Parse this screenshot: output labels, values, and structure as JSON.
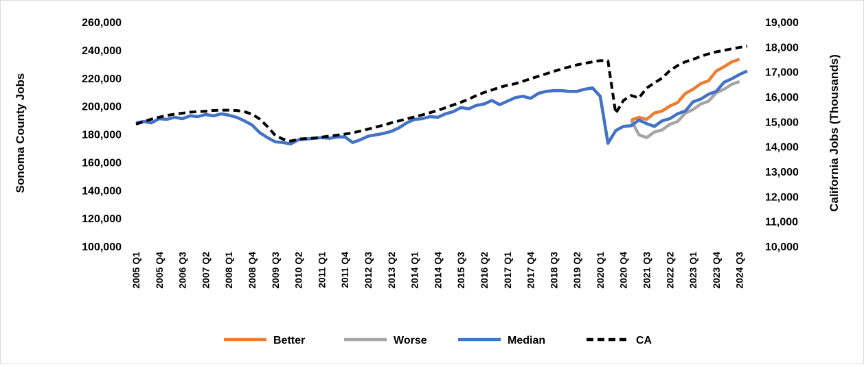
{
  "chart_data": {
    "type": "line",
    "title": "",
    "ylabel": "Sonoma County Jobs",
    "y2label": "California Jobs (Thousands)",
    "ylim": [
      100000,
      260000
    ],
    "y2lim": [
      10000,
      19000
    ],
    "yticks": [
      "100,000",
      "120,000",
      "140,000",
      "160,000",
      "180,000",
      "200,000",
      "220,000",
      "240,000",
      "260,000"
    ],
    "y2ticks": [
      "10,000",
      "11,000",
      "12,000",
      "13,000",
      "14,000",
      "15,000",
      "16,000",
      "17,000",
      "18,000",
      "19,000"
    ],
    "xticks": [
      "2005 Q1",
      "2005 Q4",
      "2006 Q3",
      "2007 Q2",
      "2008 Q1",
      "2008 Q4",
      "2009 Q3",
      "2010 Q2",
      "2011 Q1",
      "2011 Q4",
      "2012 Q3",
      "2013 Q2",
      "2014 Q1",
      "2014 Q4",
      "2015 Q3",
      "2016 Q2",
      "2017 Q1",
      "2017 Q4",
      "2018 Q3",
      "2019 Q2",
      "2020 Q1",
      "2020 Q4",
      "2021 Q3",
      "2022 Q2",
      "2023 Q1",
      "2023 Q4",
      "2024 Q3"
    ],
    "legend": {
      "position": "bottom"
    },
    "grid": false,
    "series": [
      {
        "name": "Better",
        "color": "#ED7D31",
        "axis": "left",
        "start_quarter": "2021 Q1",
        "values": [
          190000,
          192000,
          190500,
          195000,
          196500,
          200000,
          202500,
          209000,
          212000,
          216000,
          218000,
          225000,
          228000,
          231500,
          233500
        ]
      },
      {
        "name": "Worse",
        "color": "#A5A5A5",
        "axis": "left",
        "start_quarter": "2021 Q1",
        "values": [
          190000,
          179500,
          177500,
          181500,
          183000,
          187000,
          189000,
          195000,
          197500,
          201500,
          203500,
          209500,
          212000,
          215500,
          217500
        ]
      },
      {
        "name": "Median",
        "color": "#4472C4",
        "axis": "left",
        "start_quarter": "2005 Q1",
        "values": [
          188000,
          189000,
          188000,
          191000,
          190500,
          192000,
          191000,
          193000,
          192500,
          194000,
          193000,
          194500,
          193500,
          192000,
          189500,
          186500,
          181000,
          177500,
          174500,
          174000,
          173000,
          176000,
          176500,
          177000,
          177500,
          177000,
          178000,
          178000,
          174000,
          176000,
          178500,
          179500,
          180500,
          182000,
          184500,
          188000,
          190500,
          191000,
          192500,
          192000,
          194500,
          196000,
          199000,
          198000,
          200500,
          201500,
          204000,
          201000,
          203500,
          206000,
          207000,
          205500,
          209000,
          210500,
          211000,
          211000,
          210500,
          210500,
          212000,
          213000,
          207000,
          173500,
          182500,
          185500,
          186000,
          190000,
          187500,
          185500,
          189500,
          191000,
          194500,
          196500,
          203000,
          205000,
          208500,
          210500,
          217000,
          219500,
          222500,
          225000
        ]
      },
      {
        "name": "CA",
        "color": "#000000",
        "axis": "right",
        "dashed": true,
        "start_quarter": "2005 Q1",
        "values": [
          14900,
          15000,
          15100,
          15180,
          15250,
          15300,
          15340,
          15380,
          15400,
          15420,
          15450,
          15460,
          15460,
          15450,
          15400,
          15300,
          15100,
          14800,
          14450,
          14300,
          14220,
          14300,
          14320,
          14340,
          14380,
          14420,
          14460,
          14500,
          14550,
          14620,
          14700,
          14780,
          14860,
          14950,
          15030,
          15110,
          15190,
          15270,
          15360,
          15450,
          15560,
          15670,
          15780,
          15900,
          16050,
          16170,
          16270,
          16380,
          16460,
          16520,
          16620,
          16720,
          16820,
          16920,
          17020,
          17110,
          17200,
          17280,
          17340,
          17400,
          17450,
          17440,
          15330,
          15850,
          16050,
          15950,
          16350,
          16550,
          16750,
          17050,
          17250,
          17400,
          17500,
          17620,
          17720,
          17800,
          17860,
          17920,
          17980,
          18030
        ]
      }
    ]
  }
}
